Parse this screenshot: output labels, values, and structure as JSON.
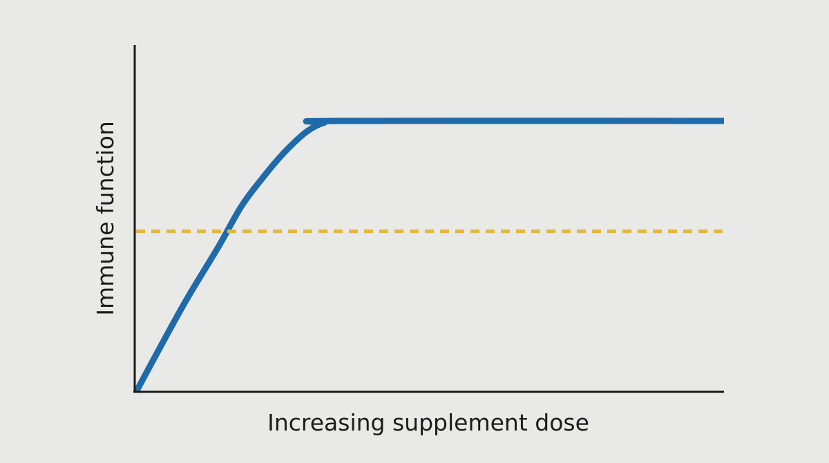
{
  "chart_data": {
    "type": "line",
    "title": "",
    "xlabel": "Increasing supplement dose",
    "ylabel": "Immune function",
    "xlim": [
      0,
      100
    ],
    "ylim": [
      0,
      100
    ],
    "grid": false,
    "legend": "none",
    "ticks": false,
    "series": [
      {
        "kind": "curve",
        "color": "#1f6aa8",
        "style": "solid",
        "x": [
          0,
          8,
          14,
          18,
          22,
          25,
          28,
          30,
          32,
          34.5,
          100
        ],
        "y": [
          0,
          25,
          42,
          54,
          63,
          69,
          74,
          76.5,
          78,
          78.5,
          78.5
        ]
      },
      {
        "kind": "reference",
        "color": "#e6b53a",
        "style": "dashed",
        "x": [
          0,
          100
        ],
        "y": [
          46.5,
          46.5
        ]
      }
    ]
  }
}
